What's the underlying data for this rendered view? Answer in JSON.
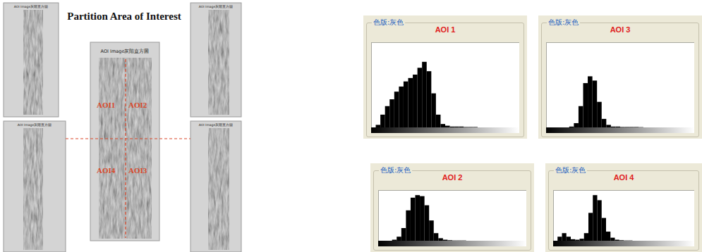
{
  "figure": {
    "title": "Partition Area of Interest",
    "panels": [
      {
        "title": "AOI Image灰階直方圖"
      },
      {
        "title": "AOI Image灰階直方圖"
      },
      {
        "title": "AOI Image灰階直方圖"
      },
      {
        "title": "AOI Image灰階直方圖"
      },
      {
        "title": "AOI Image灰階直方圖"
      }
    ],
    "aoi_labels": [
      "AOI1",
      "AOI2",
      "AOI4",
      "AOI3"
    ]
  },
  "chart_data": [
    {
      "type": "histogram",
      "title": "AOI 1",
      "subtitle": "色版:灰色",
      "color": "#000000",
      "bins": [
        0,
        8,
        16,
        24,
        32,
        40,
        48,
        56,
        64,
        72,
        80,
        88,
        96,
        104,
        112,
        120,
        128,
        136,
        144,
        152,
        160,
        168,
        176,
        184,
        192,
        200,
        208,
        216,
        224,
        232,
        240,
        248,
        256
      ],
      "values": [
        0,
        3,
        15,
        25,
        33,
        42,
        48,
        54,
        58,
        62,
        70,
        77,
        66,
        40,
        15,
        4,
        2,
        1,
        1,
        1,
        0.5,
        0.5,
        0.5,
        0,
        0,
        0,
        0,
        0,
        0,
        0,
        0,
        0
      ],
      "xlim": [
        0,
        256
      ],
      "ylim": [
        0,
        100
      ],
      "tick_labels": false
    },
    {
      "type": "histogram",
      "title": "AOI 3",
      "subtitle": "色版:灰色",
      "color": "#000000",
      "bins": [
        0,
        8,
        16,
        24,
        32,
        40,
        48,
        56,
        64,
        72,
        80,
        88,
        96,
        104,
        112,
        120,
        128,
        136,
        144,
        152,
        160,
        168,
        176,
        184,
        192,
        200,
        208,
        216,
        224,
        232,
        240,
        248,
        256
      ],
      "values": [
        0,
        0,
        0,
        0,
        0,
        1,
        5,
        25,
        52,
        60,
        55,
        30,
        10,
        3,
        1,
        1,
        0.5,
        0.5,
        0.5,
        0.5,
        0.3,
        0,
        0,
        0,
        0,
        0,
        0,
        0,
        0,
        0,
        0,
        0
      ],
      "xlim": [
        0,
        256
      ],
      "ylim": [
        0,
        100
      ],
      "tick_labels": false
    },
    {
      "type": "histogram",
      "title": "AOI 2",
      "subtitle": "色版:灰色",
      "color": "#000000",
      "bins": [
        0,
        8,
        16,
        24,
        32,
        40,
        48,
        56,
        64,
        72,
        80,
        88,
        96,
        104,
        112,
        120,
        128,
        136,
        144,
        152,
        160,
        168,
        176,
        184,
        192,
        200,
        208,
        216,
        224,
        232,
        240,
        248,
        256
      ],
      "values": [
        0,
        0,
        0,
        2,
        8,
        25,
        60,
        85,
        90,
        88,
        70,
        40,
        15,
        5,
        2,
        1,
        0.5,
        0.5,
        0.5,
        0,
        0,
        0,
        0,
        0,
        0,
        0,
        0,
        0,
        0,
        0,
        0,
        0
      ],
      "xlim": [
        0,
        256
      ],
      "ylim": [
        0,
        100
      ],
      "tick_labels": false
    },
    {
      "type": "histogram",
      "title": "AOI 4",
      "subtitle": "色版:灰色",
      "color": "#000000",
      "bins": [
        0,
        8,
        16,
        24,
        32,
        40,
        48,
        56,
        64,
        72,
        80,
        88,
        96,
        104,
        112,
        120,
        128,
        136,
        144,
        152,
        160,
        168,
        176,
        184,
        192,
        200,
        208,
        216,
        224,
        232,
        240,
        248,
        256
      ],
      "values": [
        0,
        8,
        15,
        8,
        3,
        2,
        4,
        15,
        55,
        90,
        80,
        45,
        18,
        6,
        2,
        1,
        0.5,
        0.5,
        0,
        0,
        0,
        0,
        0,
        0,
        0,
        0,
        0,
        0,
        0,
        0,
        0,
        0
      ],
      "xlim": [
        0,
        256
      ],
      "ylim": [
        0,
        100
      ],
      "tick_labels": false
    }
  ]
}
